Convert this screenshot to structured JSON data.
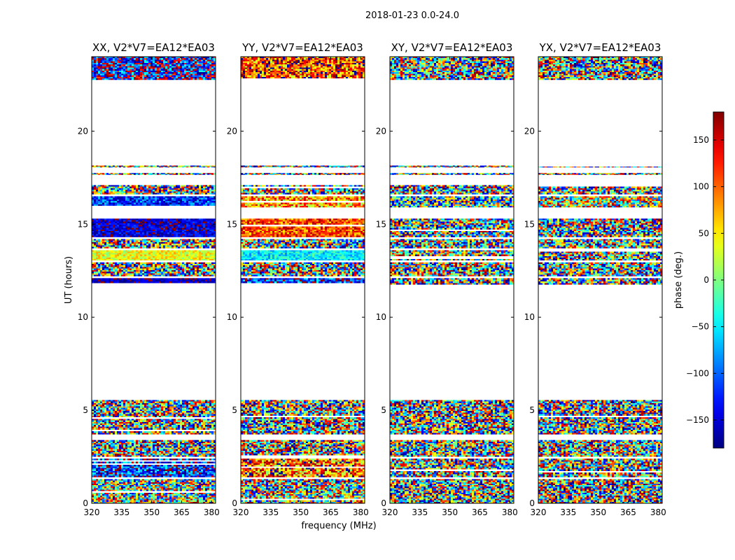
{
  "figure": {
    "suptitle": "2018-01-23 0.0-24.0",
    "ylabel": "UT (hours)",
    "xlabel": "frequency (MHz)"
  },
  "chart_data": {
    "type": "heatmap",
    "title": "2018-01-23 0.0-24.0",
    "xlabel": "frequency (MHz)",
    "ylabel": "UT (hours)",
    "xlim": [
      320,
      382
    ],
    "ylim": [
      0,
      24
    ],
    "x_ticks": [
      320,
      335,
      350,
      365,
      380
    ],
    "x_tick_labels": [
      "320",
      "335",
      "350",
      "365",
      "380"
    ],
    "y_ticks": [
      0,
      5,
      10,
      15,
      20
    ],
    "y_tick_labels": [
      "0",
      "5",
      "10",
      "15",
      "20"
    ],
    "panels": [
      {
        "title": "XX, V2*V7=EA12*EA03",
        "blocks": [
          {
            "t0": 22.75,
            "t1": 24.0,
            "phase": -140,
            "spread": 110
          },
          {
            "t0": 18.05,
            "t1": 18.15,
            "phase": 0,
            "spread": 180
          },
          {
            "t0": 17.65,
            "t1": 17.75,
            "phase": 0,
            "spread": 180
          },
          {
            "t0": 16.6,
            "t1": 17.1,
            "phase": 0,
            "spread": 180
          },
          {
            "t0": 15.9,
            "t1": 16.5,
            "phase": -120,
            "spread": 60
          },
          {
            "t0": 14.3,
            "t1": 15.3,
            "phase": -150,
            "spread": 40
          },
          {
            "t0": 13.7,
            "t1": 14.2,
            "phase": 0,
            "spread": 180
          },
          {
            "t0": 13.05,
            "t1": 13.6,
            "phase": 40,
            "spread": 40
          },
          {
            "t0": 12.2,
            "t1": 12.95,
            "phase": 0,
            "spread": 180
          },
          {
            "t0": 11.75,
            "t1": 12.1,
            "phase": -160,
            "spread": 30
          },
          {
            "t0": 3.7,
            "t1": 5.55,
            "phase": 0,
            "spread": 180
          },
          {
            "t0": 2.5,
            "t1": 3.4,
            "phase": 0,
            "spread": 180
          },
          {
            "t0": 1.4,
            "t1": 2.4,
            "phase": -120,
            "spread": 90
          },
          {
            "t0": 0.0,
            "t1": 1.3,
            "phase": 10,
            "spread": 170
          }
        ]
      },
      {
        "title": "YY, V2*V7=EA12*EA03",
        "blocks": [
          {
            "t0": 22.75,
            "t1": 24.0,
            "phase": 110,
            "spread": 90
          },
          {
            "t0": 18.05,
            "t1": 18.15,
            "phase": 0,
            "spread": 180
          },
          {
            "t0": 17.65,
            "t1": 17.75,
            "phase": 0,
            "spread": 180
          },
          {
            "t0": 16.6,
            "t1": 17.1,
            "phase": 0,
            "spread": 180
          },
          {
            "t0": 15.9,
            "t1": 16.5,
            "phase": 80,
            "spread": 80
          },
          {
            "t0": 14.3,
            "t1": 15.3,
            "phase": 110,
            "spread": 60
          },
          {
            "t0": 13.7,
            "t1": 14.2,
            "phase": 0,
            "spread": 180
          },
          {
            "t0": 13.05,
            "t1": 13.6,
            "phase": -50,
            "spread": 40
          },
          {
            "t0": 12.2,
            "t1": 12.95,
            "phase": 0,
            "spread": 180
          },
          {
            "t0": 11.75,
            "t1": 12.1,
            "phase": -120,
            "spread": 80
          },
          {
            "t0": 3.7,
            "t1": 5.55,
            "phase": 0,
            "spread": 180
          },
          {
            "t0": 2.5,
            "t1": 3.4,
            "phase": 0,
            "spread": 180
          },
          {
            "t0": 1.4,
            "t1": 2.4,
            "phase": 100,
            "spread": 100
          },
          {
            "t0": 0.0,
            "t1": 1.3,
            "phase": 20,
            "spread": 170
          }
        ]
      },
      {
        "title": "XY, V2*V7=EA12*EA03",
        "blocks": [
          {
            "t0": 22.75,
            "t1": 24.0,
            "phase": 0,
            "spread": 180
          },
          {
            "t0": 18.05,
            "t1": 18.15,
            "phase": 0,
            "spread": 180
          },
          {
            "t0": 17.65,
            "t1": 17.75,
            "phase": 0,
            "spread": 180
          },
          {
            "t0": 16.6,
            "t1": 17.1,
            "phase": 0,
            "spread": 180
          },
          {
            "t0": 15.9,
            "t1": 16.5,
            "phase": -30,
            "spread": 150
          },
          {
            "t0": 14.3,
            "t1": 15.3,
            "phase": 0,
            "spread": 180
          },
          {
            "t0": 13.7,
            "t1": 14.2,
            "phase": 0,
            "spread": 180
          },
          {
            "t0": 13.05,
            "t1": 13.6,
            "phase": 0,
            "spread": 180
          },
          {
            "t0": 12.2,
            "t1": 12.95,
            "phase": 0,
            "spread": 180
          },
          {
            "t0": 11.75,
            "t1": 12.1,
            "phase": 0,
            "spread": 180
          },
          {
            "t0": 3.7,
            "t1": 5.55,
            "phase": 0,
            "spread": 180
          },
          {
            "t0": 2.5,
            "t1": 3.4,
            "phase": 0,
            "spread": 180
          },
          {
            "t0": 1.4,
            "t1": 2.4,
            "phase": 0,
            "spread": 180
          },
          {
            "t0": 0.0,
            "t1": 1.3,
            "phase": 0,
            "spread": 180
          }
        ]
      },
      {
        "title": "YX, V2*V7=EA12*EA03",
        "blocks": [
          {
            "t0": 22.75,
            "t1": 24.0,
            "phase": 0,
            "spread": 180
          },
          {
            "t0": 18.05,
            "t1": 18.15,
            "phase": 0,
            "spread": 180
          },
          {
            "t0": 17.65,
            "t1": 17.75,
            "phase": 0,
            "spread": 180
          },
          {
            "t0": 16.6,
            "t1": 17.1,
            "phase": 0,
            "spread": 180
          },
          {
            "t0": 15.9,
            "t1": 16.5,
            "phase": 30,
            "spread": 150
          },
          {
            "t0": 14.3,
            "t1": 15.3,
            "phase": 0,
            "spread": 180
          },
          {
            "t0": 13.7,
            "t1": 14.2,
            "phase": 0,
            "spread": 180
          },
          {
            "t0": 13.05,
            "t1": 13.6,
            "phase": 0,
            "spread": 180
          },
          {
            "t0": 12.2,
            "t1": 12.95,
            "phase": 0,
            "spread": 180
          },
          {
            "t0": 11.75,
            "t1": 12.1,
            "phase": 0,
            "spread": 180
          },
          {
            "t0": 3.7,
            "t1": 5.55,
            "phase": 0,
            "spread": 180
          },
          {
            "t0": 2.5,
            "t1": 3.4,
            "phase": 0,
            "spread": 180
          },
          {
            "t0": 1.4,
            "t1": 2.4,
            "phase": 0,
            "spread": 180
          },
          {
            "t0": 0.0,
            "t1": 1.3,
            "phase": 0,
            "spread": 180
          }
        ]
      }
    ],
    "colorbar": {
      "label": "phase (deg.)",
      "range": [
        -180,
        180
      ],
      "ticks": [
        150,
        100,
        50,
        0,
        -50,
        -100,
        -150
      ],
      "tick_labels": [
        "150",
        "100",
        "50",
        "0",
        "−50",
        "−100",
        "−150"
      ],
      "colormap": "jet"
    }
  }
}
